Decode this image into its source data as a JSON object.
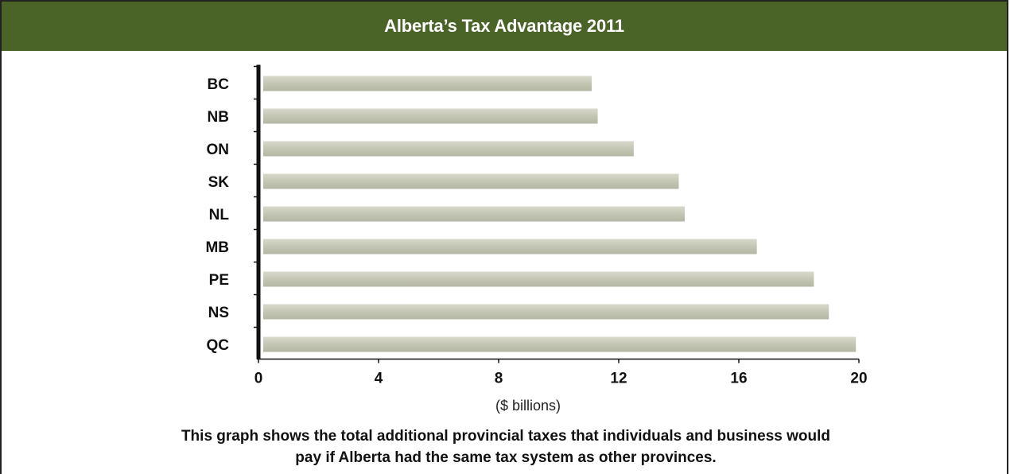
{
  "chart_data": {
    "type": "bar",
    "orientation": "horizontal",
    "title": "Alberta’s Tax Advantage 2011",
    "xlabel": "($ billions)",
    "ylabel": "",
    "categories": [
      "BC",
      "NB",
      "ON",
      "SK",
      "NL",
      "MB",
      "PE",
      "NS",
      "QC"
    ],
    "values": [
      11.1,
      11.3,
      12.5,
      14.0,
      14.2,
      16.6,
      18.5,
      19.0,
      19.9
    ],
    "xlim": [
      0,
      20
    ],
    "xticks": [
      "0",
      "4",
      "8",
      "12",
      "16",
      "20"
    ],
    "grid": false,
    "legend": "none",
    "bar_color": "#c9cbb9",
    "title_bar_color": "#4a6428"
  },
  "caption": {
    "line1": "This graph shows the total additional provincial taxes that individuals and business would",
    "line2": "pay if Alberta had the same tax system as other provinces."
  }
}
